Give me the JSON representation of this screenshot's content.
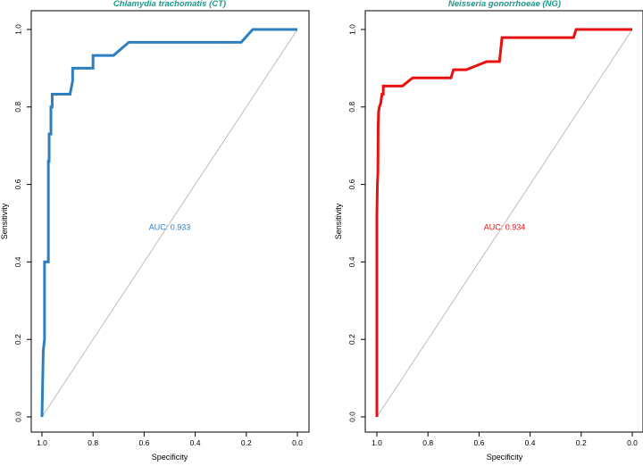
{
  "figure": {
    "label": "Two ROC curves"
  },
  "chart_data": [
    {
      "type": "line",
      "title": "Chlamydia trachomatis (CT)",
      "xlabel": "Specificity",
      "ylabel": "Sensitivity",
      "xlim": [
        1.0,
        0.0
      ],
      "ylim": [
        0.0,
        1.0
      ],
      "x_reversed": true,
      "xticks": [
        "1.0",
        "0.8",
        "0.6",
        "0.4",
        "0.2",
        "0.0"
      ],
      "yticks": [
        "0.0",
        "0.2",
        "0.4",
        "0.6",
        "0.8",
        "1.0"
      ],
      "color": "#2E7FBF",
      "title_color": "#1A9A8A",
      "annotation": "AUC: 0.933",
      "annotation_at": {
        "specificity": 0.5,
        "sensitivity": 0.49
      },
      "reference_line": "diagonal",
      "series": [
        {
          "name": "ROC",
          "specificity": [
            1.0,
            0.995,
            0.99,
            0.99,
            0.975,
            0.975,
            0.972,
            0.972,
            0.965,
            0.965,
            0.96,
            0.96,
            0.955,
            0.955,
            0.89,
            0.88,
            0.88,
            0.81,
            0.8,
            0.8,
            0.73,
            0.72,
            0.66,
            0.65,
            0.23,
            0.22,
            0.175,
            0.17,
            0.0
          ],
          "sensitivity": [
            0.0,
            0.17,
            0.2,
            0.4,
            0.4,
            0.66,
            0.66,
            0.73,
            0.73,
            0.8,
            0.8,
            0.833,
            0.833,
            0.833,
            0.833,
            0.867,
            0.9,
            0.9,
            0.9,
            0.933,
            0.933,
            0.933,
            0.967,
            0.967,
            0.967,
            0.967,
            1.0,
            1.0,
            1.0
          ]
        }
      ]
    },
    {
      "type": "line",
      "title": "Neisseria gonorrhoeae (NG)",
      "xlabel": "Specificity",
      "ylabel": "Sensitivity",
      "xlim": [
        1.0,
        0.0
      ],
      "ylim": [
        0.0,
        1.0
      ],
      "x_reversed": true,
      "xticks": [
        "1.0",
        "0.8",
        "0.6",
        "0.4",
        "0.2",
        "0.0"
      ],
      "yticks": [
        "0.0",
        "0.2",
        "0.4",
        "0.6",
        "0.8",
        "1.0"
      ],
      "color": "#E81010",
      "title_color": "#1A9A8A",
      "annotation": "AUC: 0.934",
      "annotation_at": {
        "specificity": 0.5,
        "sensitivity": 0.49
      },
      "reference_line": "diagonal",
      "series": [
        {
          "name": "ROC",
          "specificity": [
            1.0,
            1.0,
            0.998,
            0.996,
            0.995,
            0.993,
            0.99,
            0.985,
            0.98,
            0.975,
            0.975,
            0.97,
            0.9,
            0.86,
            0.8,
            0.71,
            0.7,
            0.65,
            0.57,
            0.52,
            0.51,
            0.23,
            0.22,
            0.2,
            0.0
          ],
          "sensitivity": [
            0.0,
            0.52,
            0.6,
            0.63,
            0.75,
            0.79,
            0.8,
            0.81,
            0.833,
            0.833,
            0.854,
            0.854,
            0.854,
            0.875,
            0.875,
            0.875,
            0.896,
            0.896,
            0.917,
            0.917,
            0.979,
            0.979,
            1.0,
            1.0,
            1.0
          ]
        }
      ]
    }
  ]
}
